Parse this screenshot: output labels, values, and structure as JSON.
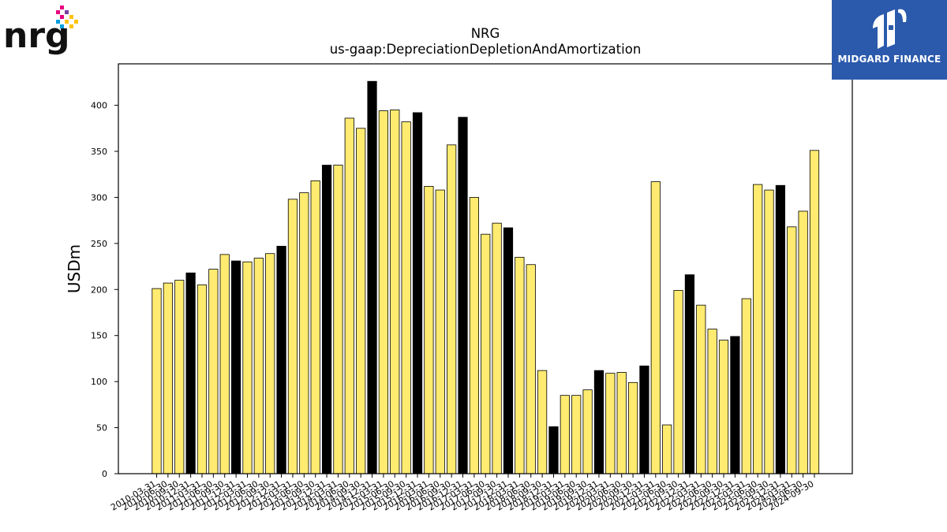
{
  "brand": {
    "company_logo_text": "nrg",
    "publisher_name": "MIDGARD FINANCE"
  },
  "chart_data": {
    "type": "bar",
    "title": "NRG",
    "subtitle": "us-gaap:DepreciationDepletionAndAmortization",
    "ylabel": "USDm",
    "xlabel": "",
    "ylim": [
      0,
      445
    ],
    "yticks": [
      0,
      50,
      100,
      150,
      200,
      250,
      300,
      350,
      400
    ],
    "grid": false,
    "colors": {
      "normal": "#ffeb70",
      "q4": "#000000",
      "edge": "#000000"
    },
    "categories": [
      "2010-03-31",
      "2010-06-30",
      "2010-09-30",
      "2010-12-31",
      "2011-03-31",
      "2011-06-30",
      "2011-09-30",
      "2011-12-31",
      "2012-03-31",
      "2012-06-30",
      "2012-09-30",
      "2012-12-31",
      "2013-03-31",
      "2013-06-30",
      "2013-09-30",
      "2013-12-31",
      "2014-03-31",
      "2014-06-30",
      "2014-09-30",
      "2014-12-31",
      "2015-03-31",
      "2015-06-30",
      "2015-09-30",
      "2015-12-31",
      "2016-03-31",
      "2016-06-30",
      "2016-09-30",
      "2016-12-31",
      "2017-03-31",
      "2017-06-30",
      "2017-09-30",
      "2017-12-31",
      "2018-03-31",
      "2018-06-30",
      "2018-09-30",
      "2018-12-31",
      "2019-03-31",
      "2019-06-30",
      "2019-09-30",
      "2019-12-31",
      "2020-03-31",
      "2020-06-30",
      "2020-09-30",
      "2020-12-31",
      "2021-03-31",
      "2021-06-30",
      "2021-09-30",
      "2021-12-31",
      "2022-03-31",
      "2022-06-30",
      "2022-09-30",
      "2022-12-31",
      "2023-03-31",
      "2023-06-30",
      "2023-09-30",
      "2023-12-31",
      "2024-03-31",
      "2024-06-30",
      "2024-09-30"
    ],
    "values": [
      201,
      207,
      210,
      218,
      205,
      222,
      238,
      231,
      230,
      234,
      239,
      247,
      298,
      305,
      318,
      335,
      335,
      386,
      375,
      426,
      394,
      395,
      382,
      392,
      312,
      308,
      357,
      387,
      300,
      260,
      272,
      267,
      235,
      227,
      112,
      51,
      85,
      85,
      91,
      112,
      109,
      110,
      99,
      117,
      317,
      53,
      199,
      216,
      183,
      157,
      145,
      149,
      190,
      314,
      308,
      313,
      268,
      285,
      351
    ],
    "highlighted": [
      false,
      false,
      false,
      true,
      false,
      false,
      false,
      true,
      false,
      false,
      false,
      true,
      false,
      false,
      false,
      true,
      false,
      false,
      false,
      true,
      false,
      false,
      false,
      true,
      false,
      false,
      false,
      true,
      false,
      false,
      false,
      true,
      false,
      false,
      false,
      true,
      false,
      false,
      false,
      true,
      false,
      false,
      false,
      true,
      false,
      false,
      false,
      true,
      false,
      false,
      false,
      true,
      false,
      false,
      false,
      true,
      false,
      false,
      false
    ]
  }
}
